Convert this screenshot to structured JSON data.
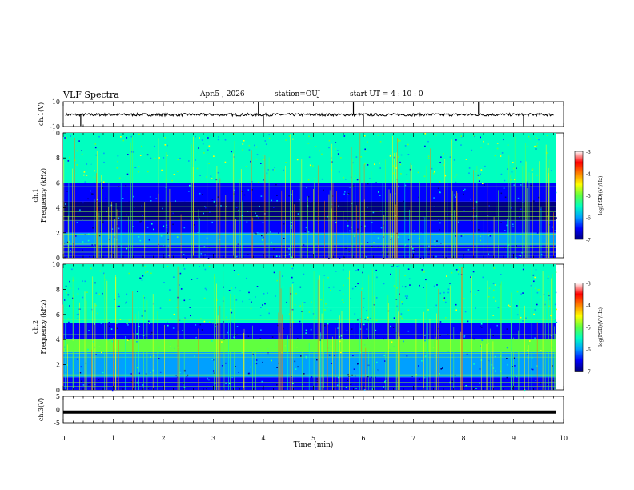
{
  "header": {
    "title": "VLF Spectra",
    "date": "Apr.5 , 2026",
    "station": "station=OUJ",
    "start_ut": "start UT = 4 : 10 : 0"
  },
  "colors": {
    "spectrogram_bg": "#000080",
    "colorbar": [
      "#000080",
      "#0000ff",
      "#00a0ff",
      "#00ffc0",
      "#60ff40",
      "#ffff00",
      "#ff8000",
      "#ff0000",
      "#ffffff"
    ]
  },
  "chart_data": [
    {
      "type": "line",
      "ylabel": "ch.1(V)",
      "yticks": [
        "10",
        "-10"
      ],
      "ylim": [
        -10,
        10
      ],
      "xlim": [
        0,
        10
      ],
      "note_trace": "waveform centred near zero with sporadic spikes",
      "spikes_x": [
        0.35,
        3.9,
        4.0,
        5.8,
        6.0,
        8.3,
        9.2
      ]
    },
    {
      "type": "heatmap",
      "ylabel": "ch.1\nFrequency (kHz)",
      "ylabel_line1": "ch.1",
      "ylabel_line2": "Frequency (kHz)",
      "yticks": [
        "0",
        "2",
        "4",
        "6",
        "8",
        "10"
      ],
      "ylim": [
        0,
        10
      ],
      "xlim": [
        0,
        9.85
      ],
      "bands_khz": [
        {
          "from": 6.0,
          "to": 10.0,
          "level": -5.3
        },
        {
          "from": 4.5,
          "to": 6.0,
          "level": -6.5
        },
        {
          "from": 3.0,
          "to": 4.5,
          "level": -6.8
        },
        {
          "from": 2.0,
          "to": 3.0,
          "level": -6.3
        },
        {
          "from": 1.0,
          "to": 2.0,
          "level": -5.8
        },
        {
          "from": 0.0,
          "to": 1.0,
          "level": -6.4
        }
      ],
      "horizontal_lines_khz": [
        0.2,
        0.45,
        0.8,
        1.1,
        1.5,
        1.9,
        3.0,
        3.3,
        3.7,
        4.1,
        5.7
      ],
      "colorbar": {
        "label": "log(PSD)(V²/Hz)",
        "ticks": [
          "-3",
          "-4",
          "-5",
          "-6",
          "-7"
        ],
        "range": [
          -7,
          -3
        ]
      }
    },
    {
      "type": "heatmap",
      "ylabel_line1": "ch.2",
      "ylabel_line2": "Frequency (kHz)",
      "yticks": [
        "0",
        "2",
        "4",
        "6",
        "8",
        "10"
      ],
      "ylim": [
        0,
        10
      ],
      "xlim": [
        0,
        9.85
      ],
      "bands_khz": [
        {
          "from": 6.5,
          "to": 10.0,
          "level": -5.5
        },
        {
          "from": 5.3,
          "to": 6.5,
          "level": -5.3
        },
        {
          "from": 4.0,
          "to": 5.3,
          "level": -6.3
        },
        {
          "from": 3.0,
          "to": 4.0,
          "level": -5.0
        },
        {
          "from": 1.0,
          "to": 3.0,
          "level": -6.0
        },
        {
          "from": 0.0,
          "to": 1.0,
          "level": -6.3
        }
      ],
      "feature": {
        "from_x": 0.65,
        "to_x": 8.3,
        "khz": [
          3.0,
          3.7
        ],
        "level": -4.9
      },
      "horizontal_lines_khz": [
        0.3,
        0.6,
        1.2,
        2.6,
        2.9,
        4.4,
        5.0,
        5.6
      ],
      "colorbar": {
        "label": "log(PSD)(V²/Hz)",
        "ticks": [
          "-3",
          "-4",
          "-5",
          "-6",
          "-7"
        ],
        "range": [
          -7,
          -3
        ]
      }
    },
    {
      "type": "line",
      "ylabel": "ch.3(V)",
      "yticks": [
        "5",
        "0",
        "-5"
      ],
      "ylim": [
        -5,
        5
      ],
      "xlim": [
        0,
        10
      ],
      "constant_value": -1.0,
      "xlabel": "Time (min)",
      "xticks": [
        "0",
        "1",
        "2",
        "3",
        "4",
        "5",
        "6",
        "7",
        "8",
        "9",
        "10"
      ]
    }
  ]
}
